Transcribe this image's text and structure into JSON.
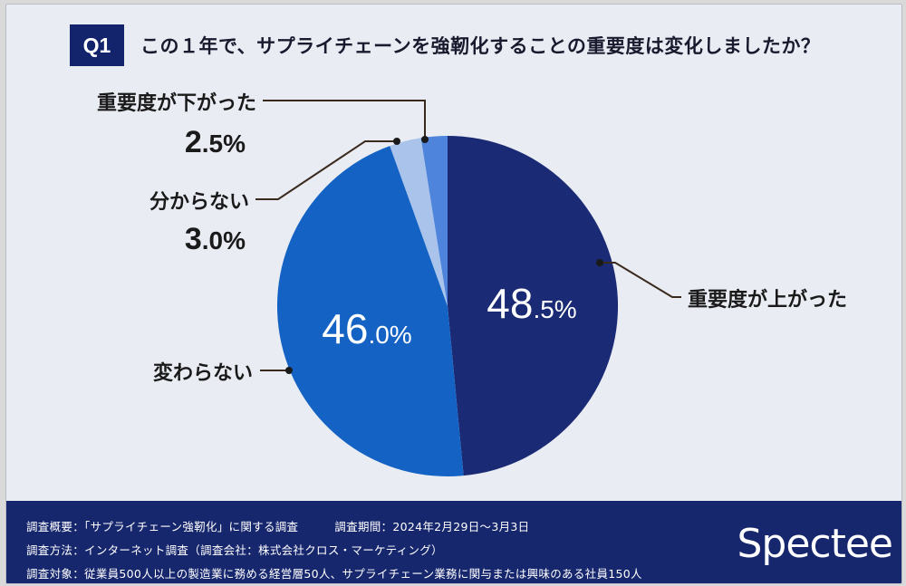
{
  "header": {
    "badge": "Q1",
    "question": "この１年で、サプライチェーンを強靭化することの重要度は変化しましたか？"
  },
  "chart_data": {
    "type": "pie",
    "title": "",
    "slices": [
      {
        "name": "重要度が上がった",
        "value": 48.5,
        "value_big": "48",
        "value_small": ".5%",
        "color": "#1a2a74"
      },
      {
        "name": "変わらない",
        "value": 46.0,
        "value_big": "46",
        "value_small": ".0%",
        "color": "#1463c4"
      },
      {
        "name": "分からない",
        "value": 3.0,
        "value_big": "3",
        "value_small": ".0%",
        "color": "#a9c3ea"
      },
      {
        "name": "重要度が下がった",
        "value": 2.5,
        "value_big": "2",
        "value_small": ".5%",
        "color": "#4e84dc"
      }
    ],
    "start": "top, clockwise"
  },
  "footer": {
    "summary_label": "調査概要：",
    "summary_value": "「サプライチェーン強靭化」に関する調査",
    "period_label": "調査期間：",
    "period_value": "2024年2月29日～3月3日",
    "method_label": "調査方法：",
    "method_value": "インターネット調査（調査会社：株式会社クロス・マーケティング）",
    "target_label": "調査対象：",
    "target_value": "従業員500人以上の製造業に務める経営層50人、サプライチェーン業務に関与または興味のある社員150人",
    "logo": "Spectee"
  }
}
